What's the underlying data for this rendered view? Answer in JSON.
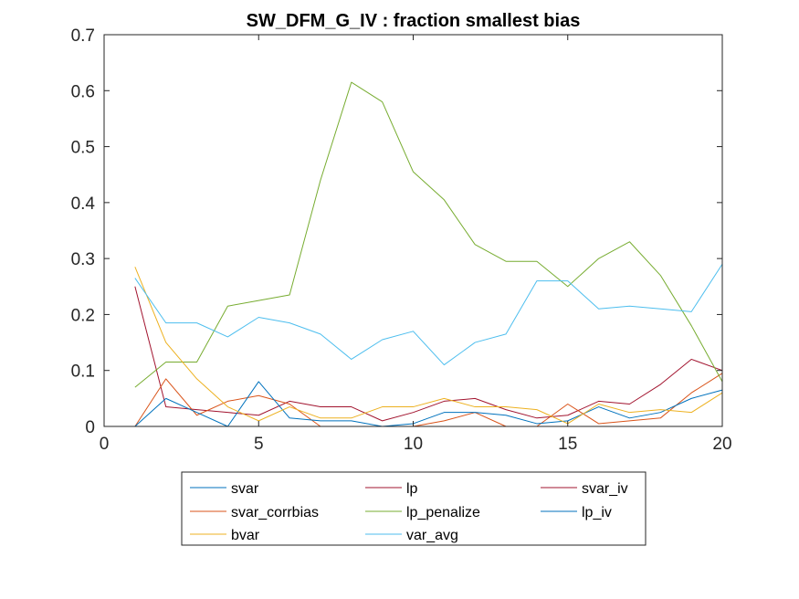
{
  "chart_data": {
    "type": "line",
    "title": "SW_DFM_G_IV : fraction smallest bias",
    "xlabel": "",
    "ylabel": "",
    "xlim": [
      0,
      20
    ],
    "ylim": [
      0,
      0.7
    ],
    "xticks": [
      0,
      5,
      10,
      15,
      20
    ],
    "yticks": [
      0,
      0.1,
      0.2,
      0.3,
      0.4,
      0.5,
      0.6,
      0.7
    ],
    "xtick_labels": [
      "0",
      "5",
      "10",
      "15",
      "20"
    ],
    "ytick_labels": [
      "0",
      "0.1",
      "0.2",
      "0.3",
      "0.4",
      "0.5",
      "0.6",
      "0.7"
    ],
    "grid": false,
    "legend_position": "bottom-center",
    "x": [
      1,
      2,
      3,
      4,
      5,
      6,
      7,
      8,
      9,
      10,
      11,
      12,
      13,
      14,
      15,
      16,
      17,
      18,
      19,
      20
    ],
    "series": [
      {
        "name": "svar",
        "color": "#0072BD",
        "values": [
          0,
          0,
          0,
          0,
          0,
          0,
          0,
          0,
          0,
          0,
          0,
          0,
          0,
          0,
          0,
          0,
          0,
          0,
          0,
          0
        ]
      },
      {
        "name": "lp",
        "color": "#A2142F",
        "values": [
          0,
          0,
          0,
          0,
          0,
          0,
          0,
          0,
          0,
          0,
          0,
          0,
          0,
          0,
          0,
          0,
          0,
          0,
          0,
          0
        ]
      },
      {
        "name": "svar_iv",
        "color": "#A2142F",
        "values": [
          0.25,
          0.035,
          0.03,
          0.025,
          0.02,
          0.045,
          0.035,
          0.035,
          0.01,
          0.025,
          0.045,
          0.05,
          0.03,
          0.015,
          0.02,
          0.045,
          0.04,
          0.075,
          0.12,
          0.1
        ]
      },
      {
        "name": "svar_corrbias",
        "color": "#D95319",
        "values": [
          0,
          0.085,
          0.02,
          0.045,
          0.055,
          0.04,
          0,
          0,
          0,
          0,
          0.01,
          0.025,
          0,
          0,
          0.04,
          0.005,
          0.01,
          0.015,
          0.06,
          0.095
        ]
      },
      {
        "name": "lp_penalize",
        "color": "#77AC30",
        "values": [
          0.07,
          0.115,
          0.115,
          0.215,
          0.225,
          0.235,
          0.44,
          0.615,
          0.58,
          0.455,
          0.405,
          0.325,
          0.295,
          0.295,
          0.25,
          0.3,
          0.33,
          0.27,
          0.18,
          0.08
        ]
      },
      {
        "name": "lp_iv",
        "color": "#0072BD",
        "values": [
          0,
          0.05,
          0.025,
          0,
          0.08,
          0.015,
          0.01,
          0.01,
          0,
          0.005,
          0.025,
          0.025,
          0.02,
          0.005,
          0.01,
          0.035,
          0.015,
          0.025,
          0.05,
          0.065
        ]
      },
      {
        "name": "bvar",
        "color": "#EDB120",
        "values": [
          0.285,
          0.15,
          0.085,
          0.035,
          0.01,
          0.035,
          0.015,
          0.015,
          0.035,
          0.035,
          0.05,
          0.035,
          0.035,
          0.03,
          0.005,
          0.04,
          0.025,
          0.03,
          0.025,
          0.06
        ]
      },
      {
        "name": "var_avg",
        "color": "#4DBEEE",
        "values": [
          0.265,
          0.185,
          0.185,
          0.16,
          0.195,
          0.185,
          0.165,
          0.12,
          0.155,
          0.17,
          0.11,
          0.15,
          0.165,
          0.26,
          0.26,
          0.21,
          0.215,
          0.21,
          0.205,
          0.29
        ]
      }
    ]
  }
}
